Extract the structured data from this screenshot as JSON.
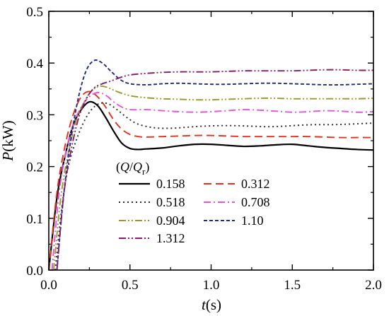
{
  "chart_data": {
    "type": "line",
    "xlabel": {
      "italic": "t",
      "rest": "(s)"
    },
    "ylabel": {
      "italic": "P",
      "rest": "(kW)"
    },
    "xlim": [
      0,
      2.0
    ],
    "ylim": [
      0,
      0.5
    ],
    "xticks": [
      "0.0",
      "0.5",
      "1.0",
      "1.5",
      "2.0"
    ],
    "yticks": [
      "0.0",
      "0.1",
      "0.2",
      "0.3",
      "0.4",
      "0.5"
    ],
    "grid": false,
    "legend": {
      "placement": "lower-left",
      "title": {
        "open": "(",
        "q": "Q",
        "slash": "/",
        "qr": "Q",
        "sub": "r",
        "close": ")"
      }
    },
    "series": [
      {
        "name": "0.158",
        "color": "#000000",
        "dash": "solid",
        "points": [
          [
            0.0,
            0.0
          ],
          [
            0.05,
            0.14
          ],
          [
            0.1,
            0.22
          ],
          [
            0.15,
            0.28
          ],
          [
            0.2,
            0.31
          ],
          [
            0.25,
            0.325
          ],
          [
            0.3,
            0.318
          ],
          [
            0.35,
            0.295
          ],
          [
            0.4,
            0.268
          ],
          [
            0.45,
            0.245
          ],
          [
            0.5,
            0.235
          ],
          [
            0.55,
            0.233
          ],
          [
            0.6,
            0.234
          ],
          [
            0.7,
            0.236
          ],
          [
            0.8,
            0.24
          ],
          [
            0.9,
            0.243
          ],
          [
            1.0,
            0.243
          ],
          [
            1.1,
            0.241
          ],
          [
            1.2,
            0.239
          ],
          [
            1.3,
            0.24
          ],
          [
            1.4,
            0.242
          ],
          [
            1.5,
            0.243
          ],
          [
            1.6,
            0.24
          ],
          [
            1.7,
            0.237
          ],
          [
            1.8,
            0.235
          ],
          [
            1.9,
            0.233
          ],
          [
            2.0,
            0.232
          ]
        ]
      },
      {
        "name": "0.312",
        "color": "#e8301c",
        "dash": "long",
        "points": [
          [
            0.0,
            0.0
          ],
          [
            0.05,
            0.15
          ],
          [
            0.1,
            0.24
          ],
          [
            0.15,
            0.3
          ],
          [
            0.2,
            0.335
          ],
          [
            0.25,
            0.345
          ],
          [
            0.3,
            0.335
          ],
          [
            0.35,
            0.315
          ],
          [
            0.4,
            0.29
          ],
          [
            0.45,
            0.272
          ],
          [
            0.5,
            0.262
          ],
          [
            0.55,
            0.258
          ],
          [
            0.6,
            0.257
          ],
          [
            0.7,
            0.258
          ],
          [
            0.8,
            0.259
          ],
          [
            0.9,
            0.26
          ],
          [
            1.0,
            0.26
          ],
          [
            1.1,
            0.259
          ],
          [
            1.2,
            0.258
          ],
          [
            1.3,
            0.258
          ],
          [
            1.4,
            0.258
          ],
          [
            1.5,
            0.258
          ],
          [
            1.6,
            0.258
          ],
          [
            1.7,
            0.257
          ],
          [
            1.8,
            0.256
          ],
          [
            1.9,
            0.256
          ],
          [
            2.0,
            0.256
          ]
        ]
      },
      {
        "name": "0.518",
        "color": "#2b2b2b",
        "dash": "dot",
        "points": [
          [
            0.04,
            0.0
          ],
          [
            0.08,
            0.12
          ],
          [
            0.12,
            0.2
          ],
          [
            0.18,
            0.26
          ],
          [
            0.24,
            0.3
          ],
          [
            0.3,
            0.32
          ],
          [
            0.36,
            0.322
          ],
          [
            0.42,
            0.31
          ],
          [
            0.48,
            0.295
          ],
          [
            0.55,
            0.282
          ],
          [
            0.65,
            0.275
          ],
          [
            0.75,
            0.274
          ],
          [
            0.85,
            0.276
          ],
          [
            0.95,
            0.278
          ],
          [
            1.05,
            0.279
          ],
          [
            1.15,
            0.279
          ],
          [
            1.25,
            0.278
          ],
          [
            1.35,
            0.277
          ],
          [
            1.45,
            0.278
          ],
          [
            1.55,
            0.28
          ],
          [
            1.65,
            0.281
          ],
          [
            1.75,
            0.281
          ],
          [
            1.85,
            0.282
          ],
          [
            2.0,
            0.284
          ]
        ]
      },
      {
        "name": "0.708",
        "color": "#e94fe1",
        "dash": "dashdot",
        "points": [
          [
            0.02,
            0.0
          ],
          [
            0.06,
            0.14
          ],
          [
            0.1,
            0.22
          ],
          [
            0.15,
            0.28
          ],
          [
            0.2,
            0.315
          ],
          [
            0.25,
            0.335
          ],
          [
            0.3,
            0.343
          ],
          [
            0.35,
            0.338
          ],
          [
            0.4,
            0.325
          ],
          [
            0.45,
            0.315
          ],
          [
            0.5,
            0.31
          ],
          [
            0.6,
            0.31
          ],
          [
            0.7,
            0.308
          ],
          [
            0.8,
            0.306
          ],
          [
            0.9,
            0.305
          ],
          [
            1.0,
            0.306
          ],
          [
            1.1,
            0.308
          ],
          [
            1.2,
            0.31
          ],
          [
            1.3,
            0.309
          ],
          [
            1.4,
            0.307
          ],
          [
            1.5,
            0.305
          ],
          [
            1.6,
            0.306
          ],
          [
            1.7,
            0.308
          ],
          [
            1.8,
            0.307
          ],
          [
            1.9,
            0.305
          ],
          [
            2.0,
            0.306
          ]
        ]
      },
      {
        "name": "0.904",
        "color": "#9a9a2a",
        "dash": "dashdotdot",
        "points": [
          [
            0.03,
            0.0
          ],
          [
            0.07,
            0.13
          ],
          [
            0.11,
            0.21
          ],
          [
            0.16,
            0.28
          ],
          [
            0.21,
            0.32
          ],
          [
            0.26,
            0.345
          ],
          [
            0.31,
            0.355
          ],
          [
            0.36,
            0.353
          ],
          [
            0.42,
            0.345
          ],
          [
            0.5,
            0.337
          ],
          [
            0.6,
            0.333
          ],
          [
            0.7,
            0.331
          ],
          [
            0.8,
            0.33
          ],
          [
            0.9,
            0.329
          ],
          [
            1.0,
            0.329
          ],
          [
            1.1,
            0.33
          ],
          [
            1.2,
            0.331
          ],
          [
            1.3,
            0.332
          ],
          [
            1.4,
            0.332
          ],
          [
            1.5,
            0.331
          ],
          [
            1.6,
            0.331
          ],
          [
            1.7,
            0.331
          ],
          [
            1.8,
            0.331
          ],
          [
            1.9,
            0.331
          ],
          [
            2.0,
            0.332
          ]
        ]
      },
      {
        "name": "1.10",
        "color": "#1c2a8c",
        "dash": "short",
        "points": [
          [
            0.05,
            0.0
          ],
          [
            0.09,
            0.14
          ],
          [
            0.13,
            0.24
          ],
          [
            0.18,
            0.33
          ],
          [
            0.23,
            0.385
          ],
          [
            0.28,
            0.405
          ],
          [
            0.33,
            0.4
          ],
          [
            0.38,
            0.385
          ],
          [
            0.44,
            0.368
          ],
          [
            0.5,
            0.36
          ],
          [
            0.6,
            0.358
          ],
          [
            0.7,
            0.36
          ],
          [
            0.8,
            0.361
          ],
          [
            0.9,
            0.36
          ],
          [
            1.0,
            0.359
          ],
          [
            1.1,
            0.359
          ],
          [
            1.2,
            0.36
          ],
          [
            1.3,
            0.361
          ],
          [
            1.4,
            0.361
          ],
          [
            1.5,
            0.36
          ],
          [
            1.6,
            0.359
          ],
          [
            1.7,
            0.358
          ],
          [
            1.8,
            0.358
          ],
          [
            1.9,
            0.359
          ],
          [
            2.0,
            0.36
          ]
        ]
      },
      {
        "name": "1.312",
        "color": "#8b1a6e",
        "dash": "dashdotdot",
        "points": [
          [
            0.05,
            0.0
          ],
          [
            0.09,
            0.14
          ],
          [
            0.13,
            0.22
          ],
          [
            0.18,
            0.29
          ],
          [
            0.23,
            0.33
          ],
          [
            0.28,
            0.352
          ],
          [
            0.33,
            0.36
          ],
          [
            0.38,
            0.365
          ],
          [
            0.44,
            0.372
          ],
          [
            0.5,
            0.377
          ],
          [
            0.6,
            0.38
          ],
          [
            0.7,
            0.382
          ],
          [
            0.8,
            0.383
          ],
          [
            0.9,
            0.383
          ],
          [
            1.0,
            0.383
          ],
          [
            1.1,
            0.384
          ],
          [
            1.2,
            0.385
          ],
          [
            1.3,
            0.385
          ],
          [
            1.4,
            0.385
          ],
          [
            1.5,
            0.385
          ],
          [
            1.6,
            0.386
          ],
          [
            1.7,
            0.387
          ],
          [
            1.8,
            0.387
          ],
          [
            1.9,
            0.386
          ],
          [
            2.0,
            0.386
          ]
        ]
      }
    ]
  }
}
